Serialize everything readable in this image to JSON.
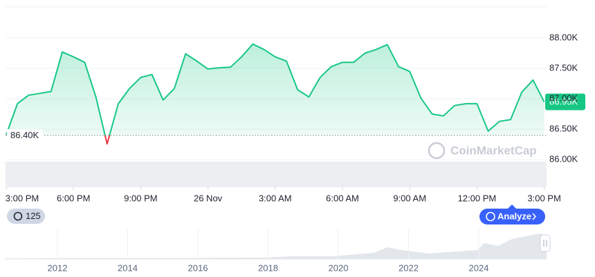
{
  "chart_data": {
    "type": "line",
    "x": [
      0,
      0.5,
      1,
      1.5,
      2,
      2.5,
      3,
      3.5,
      4,
      4.5,
      5,
      5.5,
      6,
      6.5,
      7,
      7.5,
      8,
      8.5,
      9,
      9.5,
      10,
      10.5,
      11,
      11.5,
      12,
      12.5,
      13,
      13.5,
      14,
      14.5,
      15,
      15.5,
      16,
      16.5,
      17,
      17.5,
      18,
      18.5,
      19,
      19.5,
      20,
      20.5,
      21,
      21.5,
      22,
      22.5,
      23,
      23.5,
      24
    ],
    "values": [
      86410,
      86920,
      87060,
      87090,
      87120,
      87770,
      87690,
      87600,
      87030,
      86260,
      86920,
      87170,
      87350,
      87400,
      86980,
      87170,
      87740,
      87620,
      87490,
      87510,
      87520,
      87690,
      87900,
      87810,
      87690,
      87620,
      87150,
      87030,
      87350,
      87530,
      87600,
      87600,
      87750,
      87810,
      87890,
      87530,
      87450,
      87010,
      86750,
      86720,
      86890,
      86920,
      86920,
      86470,
      86630,
      86660,
      87110,
      87310,
      86950
    ],
    "color": "#16c784",
    "below_color": "#ea3943",
    "xlim": [
      0,
      24.1
    ],
    "xticks": [
      {
        "value": 0,
        "label": "3:00 PM"
      },
      {
        "value": 3,
        "label": "6:00 PM"
      },
      {
        "value": 6,
        "label": "9:00 PM"
      },
      {
        "value": 9,
        "label": "26 Nov"
      },
      {
        "value": 12,
        "label": "3:00 AM"
      },
      {
        "value": 15,
        "label": "6:00 AM"
      },
      {
        "value": 18,
        "label": "9:00 AM"
      },
      {
        "value": 21,
        "label": "12:00 PM"
      },
      {
        "value": 24,
        "label": "3:00 PM"
      }
    ],
    "ylim": [
      85560,
      88510
    ],
    "yticks": [
      {
        "value": 86000,
        "label": "86.00K"
      },
      {
        "value": 86500,
        "label": "86.50K"
      },
      {
        "value": 87000,
        "label": "87.00K"
      },
      {
        "value": 87500,
        "label": "87.50K"
      },
      {
        "value": 88000,
        "label": "88.00K"
      }
    ],
    "grid": true,
    "reference": {
      "value": 86400,
      "label": "86.40K"
    },
    "last_price": {
      "value": 86950,
      "label": "86.95K"
    },
    "watermark": "CoinMarketCap"
  },
  "controls": {
    "history_count": 125,
    "analyze": "Analyze"
  },
  "navigator": {
    "years": [
      "2012",
      "2014",
      "2016",
      "2018",
      "2020",
      "2022",
      "2024"
    ]
  }
}
